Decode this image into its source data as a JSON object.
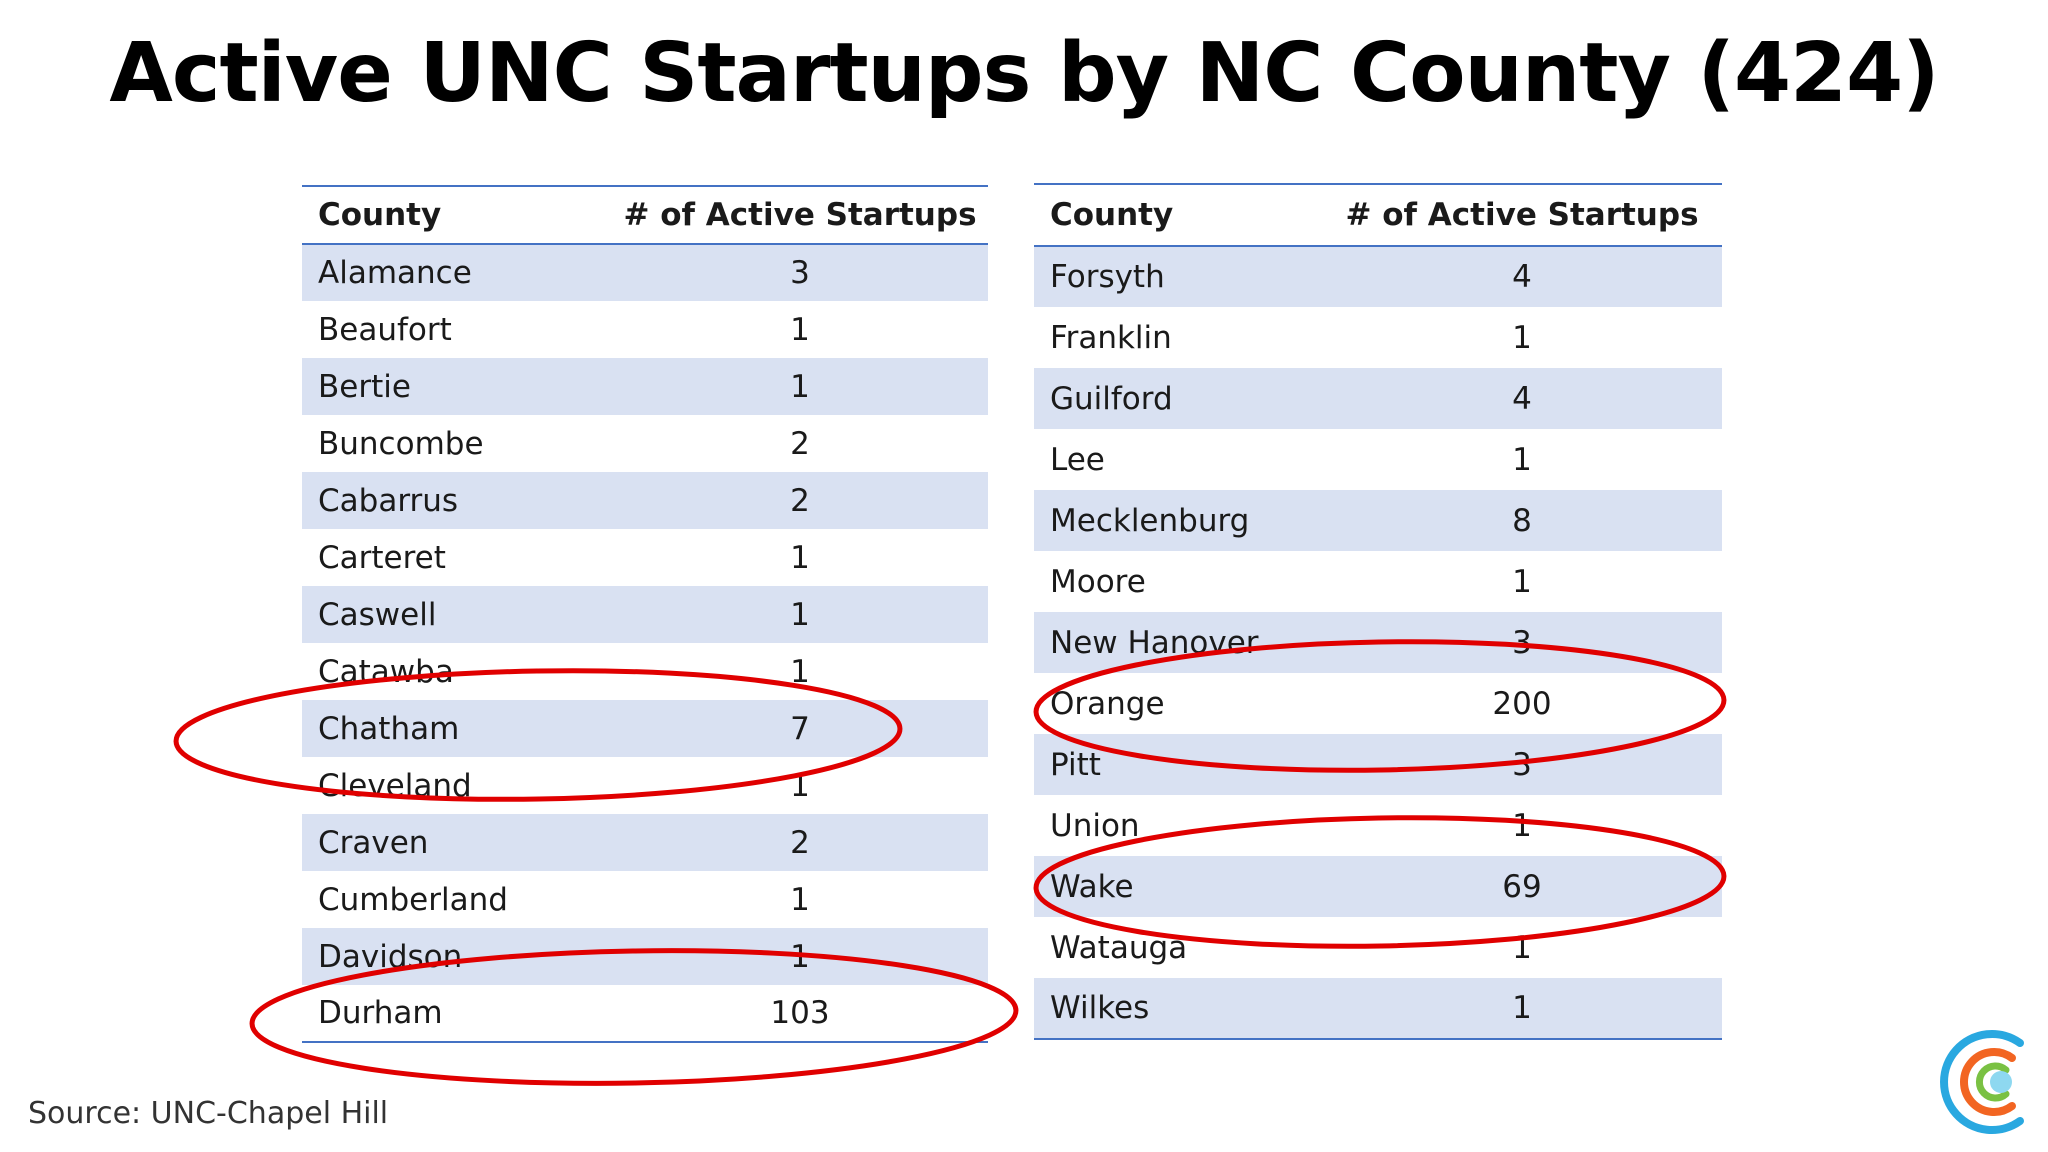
{
  "title": "Active UNC Startups by NC County (424)",
  "source": "Source: UNC-Chapel Hill",
  "headers": {
    "county": "County",
    "startups": "# of Active Startups"
  },
  "left_table": [
    {
      "county": "Alamance",
      "count": "3"
    },
    {
      "county": "Beaufort",
      "count": "1"
    },
    {
      "county": "Bertie",
      "count": "1"
    },
    {
      "county": "Buncombe",
      "count": "2"
    },
    {
      "county": "Cabarrus",
      "count": "2"
    },
    {
      "county": "Carteret",
      "count": "1"
    },
    {
      "county": "Caswell",
      "count": "1"
    },
    {
      "county": "Catawba",
      "count": "1"
    },
    {
      "county": "Chatham",
      "count": "7"
    },
    {
      "county": "Cleveland",
      "count": "1"
    },
    {
      "county": "Craven",
      "count": "2"
    },
    {
      "county": "Cumberland",
      "count": "1"
    },
    {
      "county": "Davidson",
      "count": "1"
    },
    {
      "county": "Durham",
      "count": "103"
    }
  ],
  "right_table": [
    {
      "county": "Forsyth",
      "count": "4"
    },
    {
      "county": "Franklin",
      "count": "1"
    },
    {
      "county": "Guilford",
      "count": "4"
    },
    {
      "county": "Lee",
      "count": "1"
    },
    {
      "county": "Mecklenburg",
      "count": "8"
    },
    {
      "county": "Moore",
      "count": "1"
    },
    {
      "county": "New Hanover",
      "count": "3"
    },
    {
      "county": "Orange",
      "count": "200"
    },
    {
      "county": "Pitt",
      "count": "3"
    },
    {
      "county": "Union",
      "count": "1"
    },
    {
      "county": "Wake",
      "count": "69"
    },
    {
      "county": "Watauga",
      "count": "1"
    },
    {
      "county": "Wilkes",
      "count": "1"
    }
  ],
  "highlighted_counties": [
    "Chatham",
    "Durham",
    "Orange",
    "Wake"
  ],
  "colors": {
    "header_rule": "#4472c4",
    "band": "#d9e1f2",
    "annotation": "#e00000",
    "logo_blue": "#29a8e0",
    "logo_orange": "#f26522",
    "logo_green": "#7ac143"
  },
  "logo_icon": "concentric-c-logo-icon"
}
